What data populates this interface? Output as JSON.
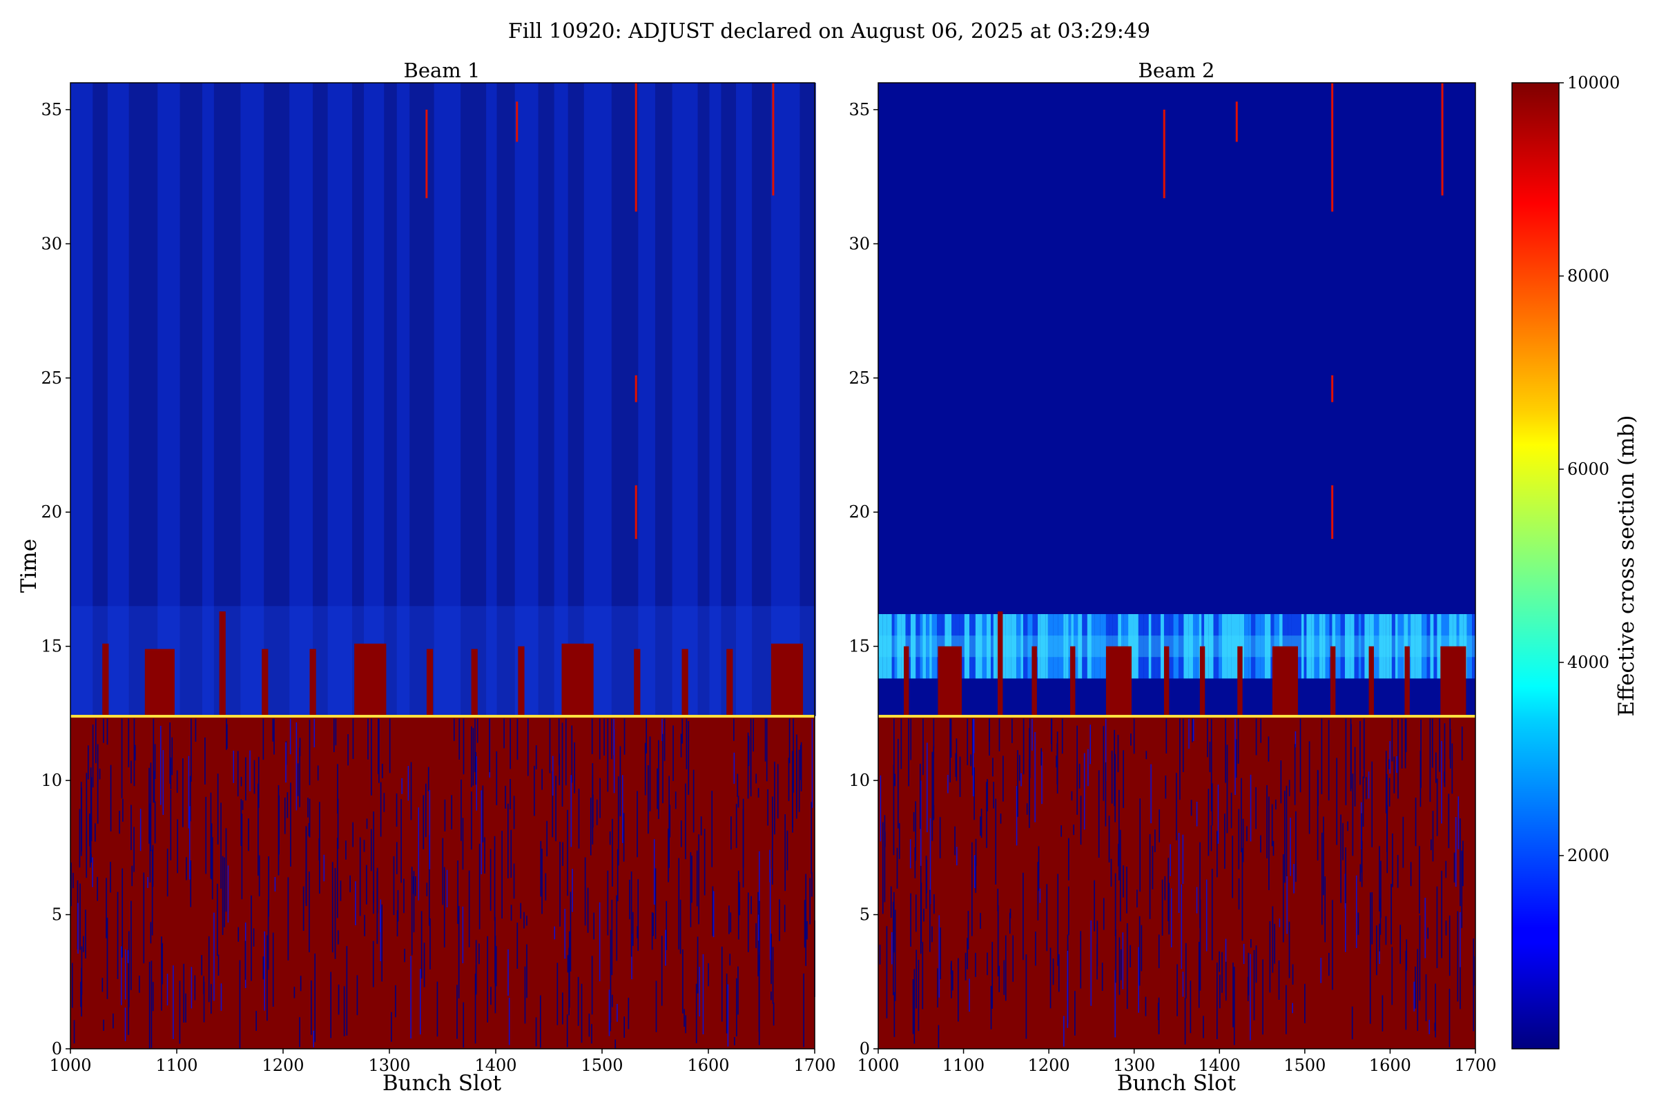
{
  "figure": {
    "title": "Fill 10920: ADJUST declared on August 06, 2025 at 03:29:49"
  },
  "chart_data": [
    {
      "type": "heatmap",
      "title": "Beam 1",
      "xlabel": "Bunch Slot",
      "ylabel": "Time",
      "xlim": [
        1000,
        1700
      ],
      "ylim": [
        0,
        36
      ],
      "xticks": [
        "1000",
        "1100",
        "1200",
        "1300",
        "1400",
        "1500",
        "1600",
        "1700"
      ],
      "yticks": [
        "0",
        "5",
        "10",
        "15",
        "20",
        "25",
        "30",
        "35"
      ],
      "colormap": "jet",
      "value_range": [
        0,
        10000
      ],
      "saturation_boundary_time": 12.4,
      "regions": [
        {
          "time_range": [
            0,
            12.4
          ],
          "value": 10000,
          "description_value": "saturated, with scattered low-value streaks"
        },
        {
          "time_range": [
            12.4,
            36
          ],
          "value": 600
        }
      ],
      "high_columns_extending_to_15": [
        {
          "x": [
            1030,
            1036
          ],
          "top": 15.1
        },
        {
          "x": [
            1070,
            1098
          ],
          "top": 14.9
        },
        {
          "x": [
            1140,
            1146
          ],
          "top": 16.3
        },
        {
          "x": [
            1180,
            1186
          ],
          "top": 14.9
        },
        {
          "x": [
            1225,
            1231
          ],
          "top": 14.9
        },
        {
          "x": [
            1267,
            1297
          ],
          "top": 15.1
        },
        {
          "x": [
            1335,
            1341
          ],
          "top": 14.9
        },
        {
          "x": [
            1377,
            1383
          ],
          "top": 14.9
        },
        {
          "x": [
            1421,
            1427
          ],
          "top": 15.0
        },
        {
          "x": [
            1462,
            1492
          ],
          "top": 15.1
        },
        {
          "x": [
            1530,
            1536
          ],
          "top": 14.9
        },
        {
          "x": [
            1575,
            1581
          ],
          "top": 14.9
        },
        {
          "x": [
            1617,
            1623
          ],
          "top": 14.9
        },
        {
          "x": [
            1659,
            1689
          ],
          "top": 15.1
        }
      ],
      "isolated_streaks": [
        {
          "x": 1334,
          "time_range": [
            31.7,
            35.0
          ]
        },
        {
          "x": 1419,
          "time_range": [
            33.8,
            35.3
          ]
        },
        {
          "x": 1531,
          "time_range": [
            31.2,
            36.0
          ]
        },
        {
          "x": 1531,
          "time_range": [
            24.1,
            25.1
          ]
        },
        {
          "x": 1531,
          "time_range": [
            19.0,
            21.0
          ]
        },
        {
          "x": 1660,
          "time_range": [
            31.8,
            36.0
          ]
        }
      ]
    },
    {
      "type": "heatmap",
      "title": "Beam 2",
      "xlabel": "Bunch Slot",
      "ylabel": "",
      "xlim": [
        1000,
        1700
      ],
      "ylim": [
        0,
        36
      ],
      "xticks": [
        "1000",
        "1100",
        "1200",
        "1300",
        "1400",
        "1500",
        "1600",
        "1700"
      ],
      "yticks": [
        "0",
        "5",
        "10",
        "15",
        "20",
        "25",
        "30",
        "35"
      ],
      "colormap": "jet",
      "value_range": [
        0,
        10000
      ],
      "saturation_boundary_time": 12.4,
      "regions": [
        {
          "time_range": [
            0,
            12.4
          ],
          "value": 10000
        },
        {
          "time_range": [
            12.4,
            36
          ],
          "value": 200
        },
        {
          "time_range": [
            13.8,
            16.2
          ],
          "value": 2500,
          "description_value": "banded elevated values between trains"
        }
      ],
      "high_columns_extending_to_15": [
        {
          "x": [
            1030,
            1036
          ],
          "top": 15.0
        },
        {
          "x": [
            1070,
            1098
          ],
          "top": 15.0
        },
        {
          "x": [
            1140,
            1146
          ],
          "top": 16.3
        },
        {
          "x": [
            1180,
            1186
          ],
          "top": 15.0
        },
        {
          "x": [
            1225,
            1231
          ],
          "top": 15.0
        },
        {
          "x": [
            1267,
            1297
          ],
          "top": 15.0
        },
        {
          "x": [
            1335,
            1341
          ],
          "top": 15.0
        },
        {
          "x": [
            1377,
            1383
          ],
          "top": 15.0
        },
        {
          "x": [
            1421,
            1427
          ],
          "top": 15.0
        },
        {
          "x": [
            1462,
            1492
          ],
          "top": 15.0
        },
        {
          "x": [
            1530,
            1536
          ],
          "top": 15.0
        },
        {
          "x": [
            1575,
            1581
          ],
          "top": 15.0
        },
        {
          "x": [
            1617,
            1623
          ],
          "top": 15.0
        },
        {
          "x": [
            1659,
            1689
          ],
          "top": 15.0
        }
      ],
      "isolated_streaks": [
        {
          "x": 1334,
          "time_range": [
            31.7,
            35.0
          ]
        },
        {
          "x": 1419,
          "time_range": [
            33.8,
            35.3
          ]
        },
        {
          "x": 1531,
          "time_range": [
            31.2,
            36.0
          ]
        },
        {
          "x": 1531,
          "time_range": [
            24.1,
            25.1
          ]
        },
        {
          "x": 1531,
          "time_range": [
            19.0,
            21.0
          ]
        },
        {
          "x": 1660,
          "time_range": [
            31.8,
            36.0
          ]
        }
      ]
    }
  ],
  "colorbar": {
    "label": "Effective cross section (mb)",
    "ticks": [
      "2000",
      "4000",
      "6000",
      "8000",
      "10000"
    ],
    "colors": {
      "low": "#00007f",
      "blue": "#0000ff",
      "cyan": "#00ffff",
      "yellow": "#ffff00",
      "red": "#ff0000",
      "high": "#7f0000"
    }
  }
}
